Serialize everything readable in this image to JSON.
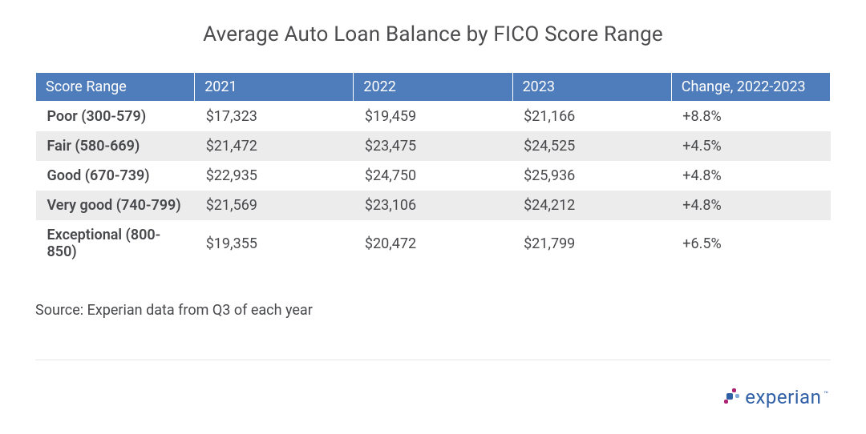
{
  "title": "Average Auto Loan Balance by FICO Score Range",
  "table": {
    "type": "table",
    "header_bg": "#4f7cba",
    "header_text_color": "#ffffff",
    "row_bg_odd": "#ffffff",
    "row_bg_even": "#ececec",
    "text_color": "#47484b",
    "font_size_pt": 14,
    "columns": [
      "Score Range",
      "2021",
      "2022",
      "2023",
      "Change, 2022-2023"
    ],
    "rows": [
      [
        "Poor (300-579)",
        "$17,323",
        "$19,459",
        "$21,166",
        "+8.8%"
      ],
      [
        "Fair (580-669)",
        "$21,472",
        "$23,475",
        "$24,525",
        "+4.5%"
      ],
      [
        "Good (670-739)",
        "$22,935",
        "$24,750",
        "$25,936",
        "+4.8%"
      ],
      [
        "Very good (740-799)",
        "$21,569",
        "$23,106",
        "$24,212",
        "+4.8%"
      ],
      [
        "Exceptional (800-850)",
        "$19,355",
        "$20,472",
        "$21,799",
        "+6.5%"
      ]
    ]
  },
  "source": "Source: Experian data from Q3 of each year",
  "logo": {
    "text": "experian",
    "tm": "™",
    "primary_color": "#2f5fa5",
    "accent_color": "#ab2273",
    "light_color": "#7fa9d8"
  },
  "background_color": "#ffffff",
  "divider_color": "#e6e6e6"
}
